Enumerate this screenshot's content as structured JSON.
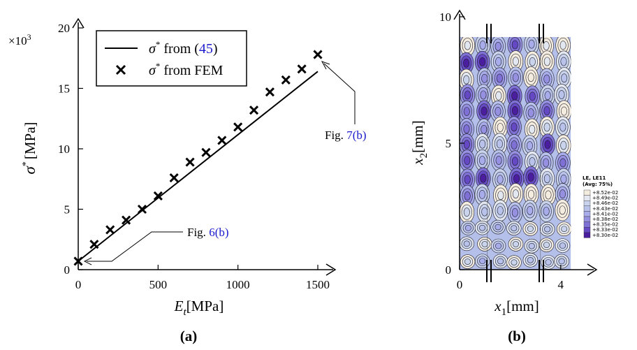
{
  "chart_data": [
    {
      "type": "line",
      "title": "",
      "panel_label": "(a)",
      "xlabel_main": "E",
      "xlabel_sub": "t",
      "xlabel_unit": "[MPa]",
      "ylabel_main": "σ",
      "ylabel_sup": "*",
      "ylabel_unit": "[MPa]",
      "y_multiplier": "×10",
      "y_multiplier_exp": "3",
      "xlim": [
        0,
        1500
      ],
      "ylim": [
        0,
        20
      ],
      "x_ticks": [
        0,
        500,
        1000,
        1500
      ],
      "y_ticks": [
        0,
        5,
        10,
        15,
        20
      ],
      "grid": false,
      "legend_position": "top-left",
      "series": [
        {
          "name": "σ* from (45)",
          "legend_text": "σ",
          "legend_sup": "*",
          "legend_suffix": " from (",
          "legend_ref": "45",
          "legend_close": ")",
          "style": "line",
          "x": [
            0,
            1500
          ],
          "y": [
            0.7,
            16.4
          ]
        },
        {
          "name": "σ* from FEM",
          "legend_text": "σ",
          "legend_sup": "*",
          "legend_suffix": " from FEM",
          "style": "marker-x",
          "x": [
            0,
            100,
            200,
            300,
            400,
            500,
            600,
            700,
            800,
            900,
            1000,
            1100,
            1200,
            1300,
            1400,
            1500
          ],
          "y": [
            0.7,
            2.1,
            3.3,
            4.1,
            5.0,
            6.1,
            7.6,
            8.9,
            9.7,
            10.7,
            11.8,
            13.2,
            14.7,
            15.7,
            16.6,
            17.8
          ]
        }
      ],
      "annotations": [
        {
          "prefix": "Fig. ",
          "ref": "6(b)",
          "points_to": [
            0,
            0.7
          ]
        },
        {
          "prefix": "Fig. ",
          "ref": "7(b)",
          "points_to": [
            1500,
            17.8
          ]
        }
      ]
    },
    {
      "type": "heatmap",
      "title": "",
      "panel_label": "(b)",
      "xlabel_main": "x",
      "xlabel_sub": "1",
      "xlabel_unit": "[mm]",
      "ylabel_main": "x",
      "ylabel_sub": "2",
      "ylabel_unit": "[mm]",
      "x_ticks": [
        0,
        4
      ],
      "y_ticks": [
        0,
        5,
        10
      ],
      "xlim": [
        0,
        4.5
      ],
      "ylim": [
        0,
        10
      ],
      "domain_x": [
        0,
        4.4
      ],
      "domain_y": [
        0,
        9.2
      ],
      "legend": {
        "title_line1": "LE, LE11",
        "title_line2": "(Avg: 75%)",
        "levels": [
          "+8.52e-02",
          "+8.49e-02",
          "+8.46e-02",
          "+8.43e-02",
          "+8.41e-02",
          "+8.38e-02",
          "+8.35e-02",
          "+8.33e-02",
          "+8.30e-02"
        ],
        "colors": [
          "#f4ecdf",
          "#e2e7f0",
          "#c9d4ec",
          "#b8c2ea",
          "#a8acea",
          "#9690e0",
          "#7f70d6",
          "#6448c4",
          "#4a1e9e"
        ]
      }
    }
  ]
}
